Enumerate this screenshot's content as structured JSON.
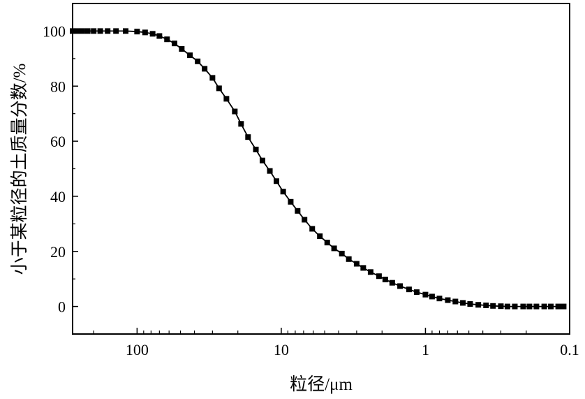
{
  "chart_data": {
    "type": "line",
    "title": "",
    "xlabel": "粒径/μm",
    "ylabel": "小于某粒径的土质量分数/%",
    "x_scale": "log",
    "x_reversed": true,
    "xlim": [
      280,
      0.1
    ],
    "ylim": [
      -10,
      110
    ],
    "x_tick_labels": [
      "100",
      "10",
      "1",
      "0.1"
    ],
    "y_tick_labels": [
      "0",
      "20",
      "40",
      "60",
      "80",
      "100"
    ],
    "grid": false,
    "legend": "none",
    "marker": "square",
    "color": "#000000",
    "series": [
      {
        "x": [
          280,
          260,
          240,
          220,
          200,
          180,
          160,
          140,
          120,
          100,
          88,
          78,
          70,
          62,
          55,
          49,
          43,
          38,
          34,
          30,
          27,
          24,
          21,
          19,
          17,
          15,
          13.5,
          12,
          10.8,
          9.7,
          8.6,
          7.7,
          6.9,
          6.1,
          5.4,
          4.8,
          4.3,
          3.8,
          3.4,
          3.0,
          2.7,
          2.4,
          2.1,
          1.9,
          1.7,
          1.5,
          1.3,
          1.15,
          1.0,
          0.9,
          0.8,
          0.7,
          0.62,
          0.55,
          0.49,
          0.43,
          0.38,
          0.34,
          0.3,
          0.27,
          0.24,
          0.21,
          0.19,
          0.17,
          0.15,
          0.135,
          0.12,
          0.11
        ],
        "y": [
          100,
          100,
          100,
          100,
          100,
          100,
          100,
          100,
          100,
          99.8,
          99.5,
          99,
          98.2,
          97,
          95.5,
          93.5,
          91.2,
          89,
          86.3,
          83,
          79.2,
          75.4,
          70.8,
          66.3,
          61.5,
          57,
          53,
          49.2,
          45.5,
          41.7,
          38,
          34.7,
          31.5,
          28.2,
          25.5,
          23.2,
          21.1,
          19.2,
          17.2,
          15.5,
          14,
          12.5,
          11,
          9.8,
          8.6,
          7.4,
          6.2,
          5.2,
          4.3,
          3.6,
          2.9,
          2.3,
          1.8,
          1.3,
          0.9,
          0.6,
          0.4,
          0.2,
          0.1,
          0,
          0,
          0,
          0,
          0,
          0,
          0,
          0,
          0
        ]
      }
    ]
  }
}
